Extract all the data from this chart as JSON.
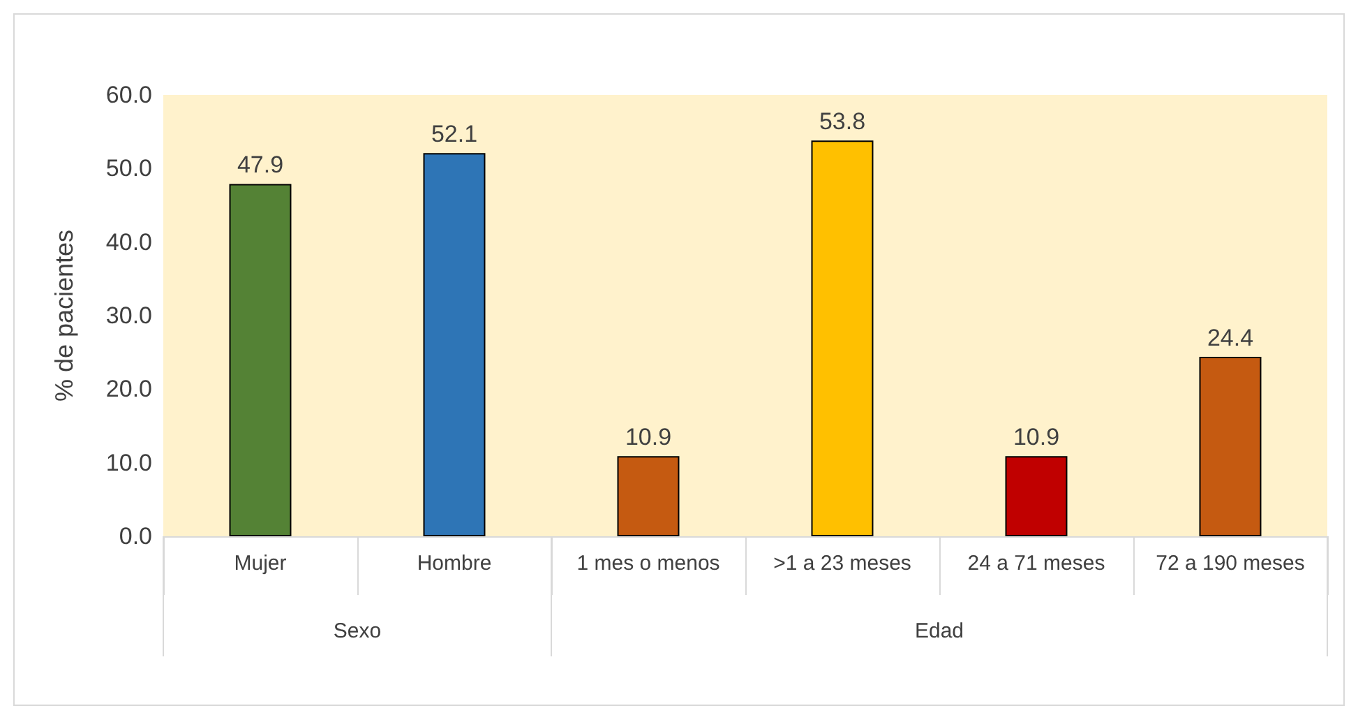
{
  "chart_data": {
    "type": "bar",
    "ylabel": "% de pacientes",
    "categories": [
      "Mujer",
      "Hombre",
      "1 mes o menos",
      ">1 a 23 meses",
      "24 a 71 meses",
      "72 a 190 meses"
    ],
    "values": [
      47.9,
      52.1,
      10.9,
      53.8,
      10.9,
      24.4
    ],
    "colors": [
      "#548235",
      "#2e75b6",
      "#c55a11",
      "#ffc000",
      "#c00000",
      "#c55a11"
    ],
    "ylim": [
      0,
      60
    ],
    "yticks": [
      {
        "value": 0,
        "label": "0.0"
      },
      {
        "value": 10,
        "label": "10.0"
      },
      {
        "value": 20,
        "label": "20.0"
      },
      {
        "value": 30,
        "label": "30.0"
      },
      {
        "value": 40,
        "label": "40.0"
      },
      {
        "value": 50,
        "label": "50.0"
      },
      {
        "value": 60,
        "label": "60.0"
      }
    ],
    "annotations": [
      "Sexo",
      "Edad"
    ],
    "data_labels": true,
    "grid": false
  }
}
